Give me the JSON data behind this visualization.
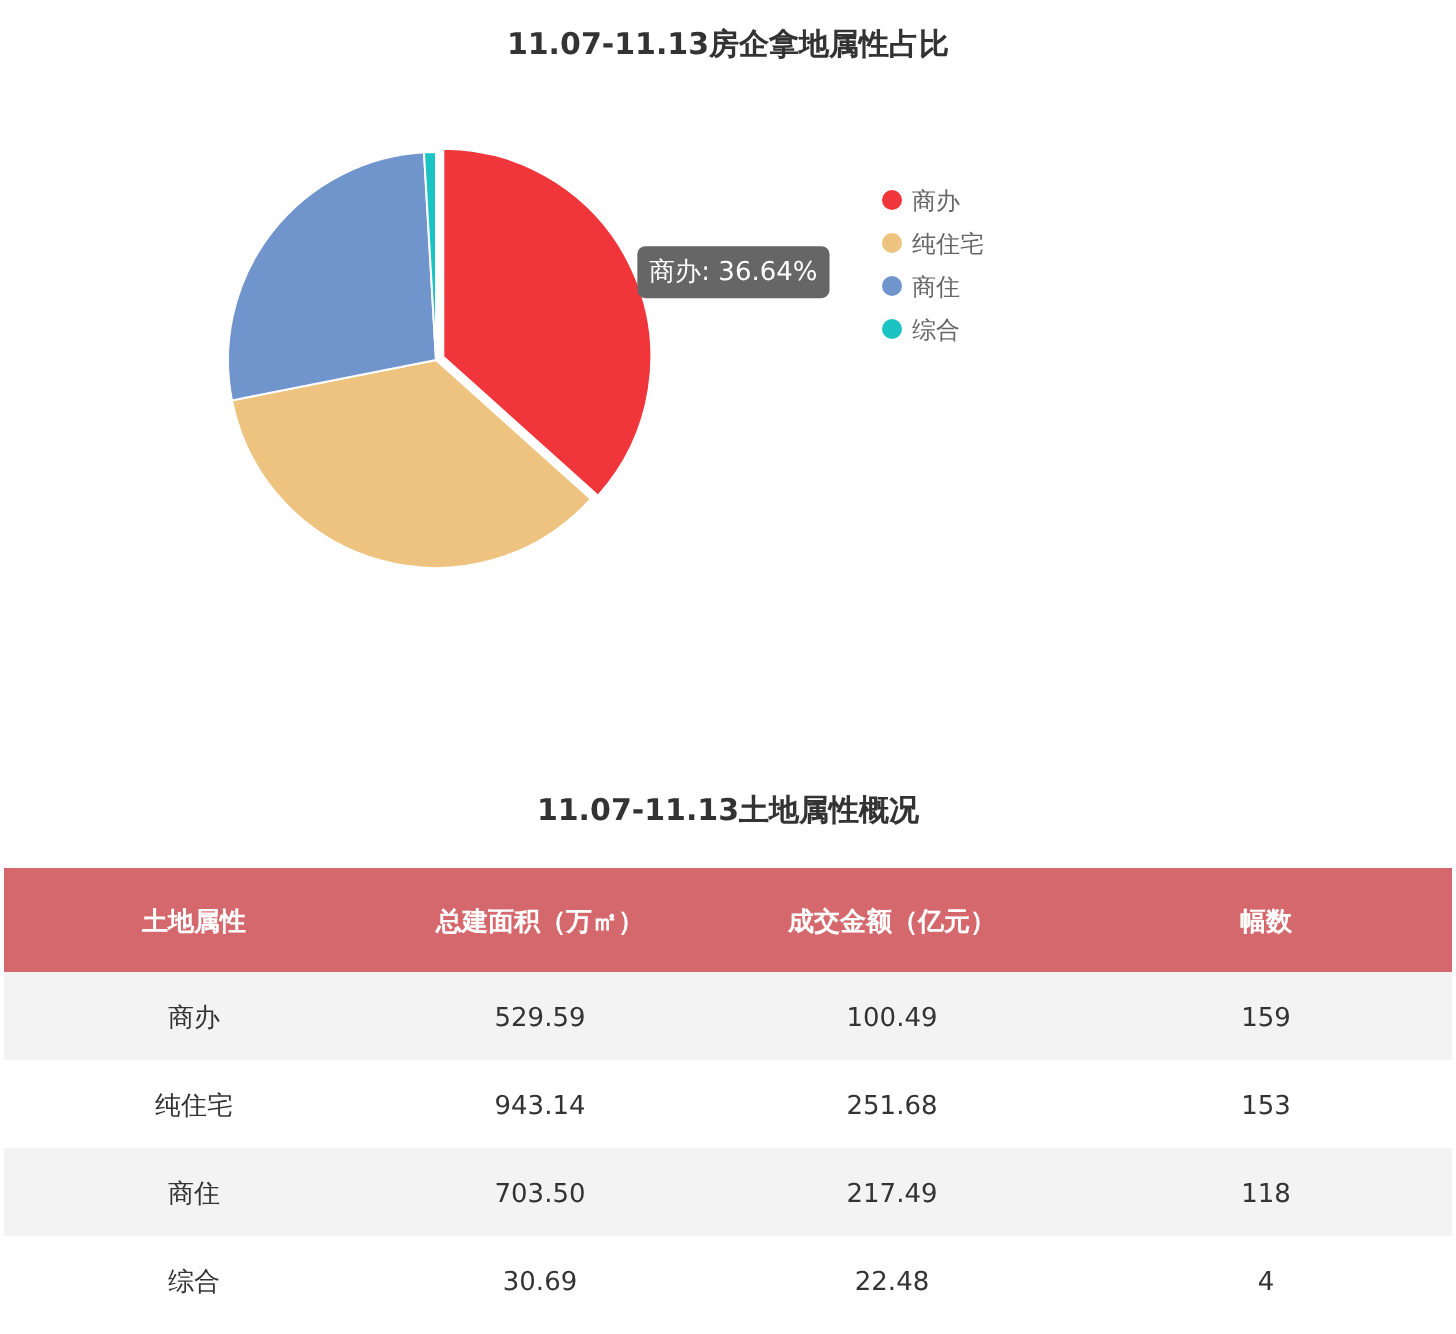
{
  "chart_data": [
    {
      "type": "pie",
      "title": "11.07-11.13房企拿地属性占比",
      "categories": [
        "商办",
        "纯住宅",
        "商住",
        "综合"
      ],
      "values": [
        36.64,
        35.25,
        27.19,
        0.92
      ],
      "colors": [
        "#f0353b",
        "#eec37f",
        "#7094cc",
        "#1cc3c3"
      ],
      "value_labels": [
        "商办: 36.64%",
        null,
        null,
        null
      ],
      "legend": "right"
    },
    {
      "type": "heatmap",
      "title": "11.07-11.13土地属性概况",
      "ylabel": "土地属性",
      "categories": [
        "总建面积（万㎡）",
        "成交金额（亿元）",
        "幅数"
      ],
      "y_categories": [
        "商办",
        "纯住宅",
        "商住",
        "综合"
      ],
      "cells": [
        [
          529.59,
          100.49,
          159
        ],
        [
          943.14,
          251.68,
          153
        ],
        [
          703.5,
          217.49,
          118
        ],
        [
          30.69,
          22.48,
          4
        ]
      ],
      "cell_labels": [
        [
          "529.59",
          "100.49",
          "159"
        ],
        [
          "943.14",
          "251.68",
          "153"
        ],
        [
          "703.50",
          "217.49",
          "118"
        ],
        [
          "30.69",
          "22.48",
          "4"
        ]
      ]
    }
  ]
}
